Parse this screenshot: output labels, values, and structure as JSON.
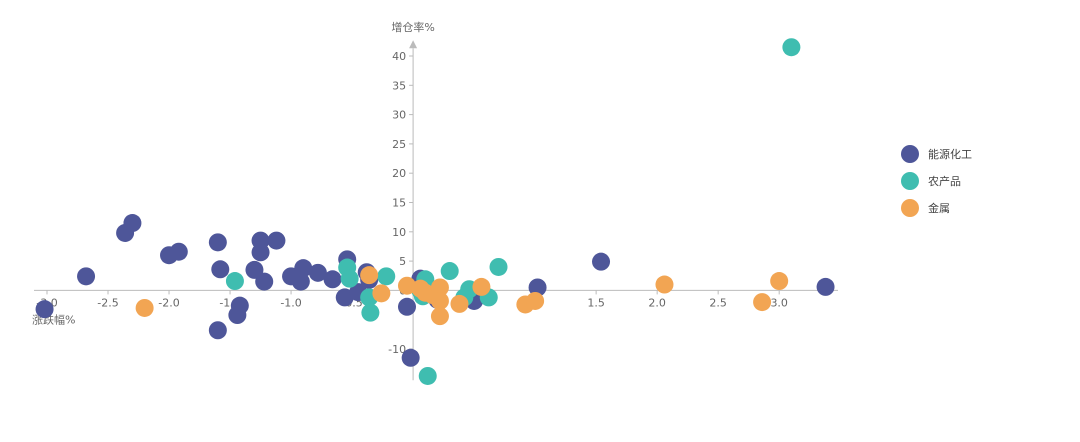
{
  "chart_data": {
    "type": "scatter",
    "xlabel": "涨跌幅%",
    "ylabel": "增仓率%",
    "xlim": [
      -3.0,
      3.4
    ],
    "ylim": [
      -15,
      42
    ],
    "x_ticks": [
      -3.0,
      -2.5,
      -2.0,
      -1.5,
      -1.0,
      -0.5,
      0,
      0.5,
      1.0,
      1.5,
      2.0,
      2.5,
      3.0
    ],
    "x_tick_labels": [
      "-3.0",
      "-2.5",
      "-2.0",
      "-1.5",
      "-1.0",
      "-0.5",
      "",
      "0.5",
      "1.0",
      "1.5",
      "2.0",
      "2.5",
      "3.0"
    ],
    "y_ticks": [
      -10,
      0,
      5,
      10,
      15,
      20,
      25,
      30,
      35,
      40
    ],
    "y_tick_labels": [
      "-10",
      "0",
      "5",
      "10",
      "15",
      "20",
      "25",
      "30",
      "35",
      "40"
    ],
    "legend_position": "right",
    "series": [
      {
        "name": "能源化工",
        "color": "#4e5699",
        "points": [
          [
            -3.02,
            -3.2
          ],
          [
            -2.68,
            2.4
          ],
          [
            -2.36,
            9.8
          ],
          [
            -2.3,
            11.5
          ],
          [
            -2.0,
            6.0
          ],
          [
            -1.92,
            6.6
          ],
          [
            -1.6,
            8.2
          ],
          [
            -1.58,
            3.6
          ],
          [
            -1.42,
            -2.6
          ],
          [
            -1.44,
            -4.2
          ],
          [
            -1.6,
            -6.8
          ],
          [
            -1.25,
            8.5
          ],
          [
            -1.25,
            6.5
          ],
          [
            -1.3,
            3.5
          ],
          [
            -1.22,
            1.5
          ],
          [
            -1.12,
            8.5
          ],
          [
            -1.0,
            2.4
          ],
          [
            -0.92,
            1.5
          ],
          [
            -0.9,
            3.8
          ],
          [
            -0.78,
            3.0
          ],
          [
            -0.66,
            1.9
          ],
          [
            -0.54,
            5.3
          ],
          [
            -0.56,
            -1.2
          ],
          [
            -0.45,
            -0.3
          ],
          [
            -0.38,
            3.1
          ],
          [
            -0.36,
            1.8
          ],
          [
            -0.05,
            -2.8
          ],
          [
            -0.02,
            -11.5
          ],
          [
            0.06,
            2.0
          ],
          [
            0.2,
            -1.6
          ],
          [
            0.5,
            -1.8
          ],
          [
            1.02,
            0.5
          ],
          [
            1.54,
            4.9
          ],
          [
            3.38,
            0.6
          ]
        ]
      },
      {
        "name": "农产品",
        "color": "#3fbdb0",
        "points": [
          [
            3.1,
            41.5
          ],
          [
            -1.46,
            1.6
          ],
          [
            -0.54,
            3.9
          ],
          [
            -0.52,
            2.0
          ],
          [
            -0.36,
            -1.2
          ],
          [
            -0.35,
            -3.8
          ],
          [
            -0.22,
            2.4
          ],
          [
            0.1,
            1.9
          ],
          [
            0.06,
            0.0
          ],
          [
            0.08,
            -1.0
          ],
          [
            0.12,
            -14.6
          ],
          [
            0.3,
            3.3
          ],
          [
            0.42,
            -1.2
          ],
          [
            0.46,
            0.2
          ],
          [
            0.62,
            -1.2
          ],
          [
            0.7,
            4.0
          ]
        ]
      },
      {
        "name": "金属",
        "color": "#f2a553",
        "points": [
          [
            -2.2,
            -3.0
          ],
          [
            -0.36,
            2.6
          ],
          [
            -0.26,
            -0.5
          ],
          [
            -0.05,
            0.8
          ],
          [
            0.06,
            0.3
          ],
          [
            0.1,
            -0.4
          ],
          [
            0.16,
            -0.8
          ],
          [
            0.22,
            0.5
          ],
          [
            0.22,
            -1.8
          ],
          [
            0.22,
            -4.4
          ],
          [
            0.38,
            -2.3
          ],
          [
            0.56,
            0.6
          ],
          [
            0.92,
            -2.4
          ],
          [
            1.0,
            -1.8
          ],
          [
            2.06,
            1.0
          ],
          [
            2.86,
            -2.0
          ],
          [
            3.0,
            1.6
          ]
        ]
      }
    ]
  }
}
